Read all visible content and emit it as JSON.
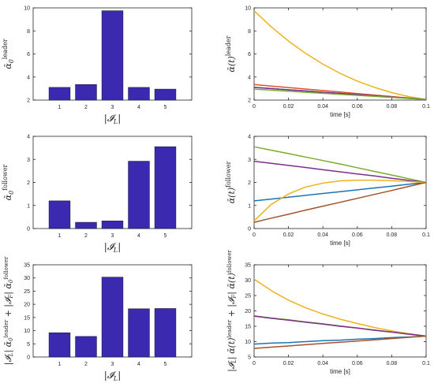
{
  "colors": {
    "bar": "#3b2ab0",
    "axis": "#262626",
    "yellow": "#eeb21f",
    "red": "#d9532a",
    "blue": "#1c73b5",
    "purple": "#7d2e8e",
    "green": "#79ac2f",
    "brown": "#a4522a"
  },
  "chart_data": [
    {
      "type": "bar",
      "categories": [
        "1",
        "2",
        "3",
        "4",
        "5"
      ],
      "values": [
        3.1,
        3.35,
        9.75,
        3.1,
        2.95
      ],
      "xlabel": "|𝓘_L|",
      "ylabel": "ᾱ₀^leader",
      "ylim": [
        2,
        10
      ],
      "yticks": [
        "2",
        "4",
        "6",
        "8",
        "10"
      ],
      "grid": false
    },
    {
      "type": "line",
      "xlabel": "time [s]",
      "ylabel": "ᾱ(t)^leader",
      "xlim": [
        0,
        0.1
      ],
      "ylim": [
        2,
        10
      ],
      "xticks": [
        "0",
        "0.02",
        "0.04",
        "0.06",
        "0.08",
        "0.1"
      ],
      "yticks": [
        "2",
        "4",
        "6",
        "8",
        "10"
      ],
      "x": [
        0,
        0.01,
        0.02,
        0.03,
        0.04,
        0.05,
        0.06,
        0.07,
        0.08,
        0.09,
        0.1
      ],
      "series": [
        {
          "color": "yellow",
          "values": [
            9.75,
            8.35,
            7.12,
            6.05,
            5.12,
            4.32,
            3.65,
            3.1,
            2.65,
            2.3,
            2.05
          ]
        },
        {
          "color": "red",
          "values": [
            3.35,
            3.22,
            3.09,
            2.96,
            2.83,
            2.7,
            2.57,
            2.44,
            2.31,
            2.18,
            2.05
          ]
        },
        {
          "color": "blue",
          "values": [
            3.1,
            3.0,
            2.89,
            2.79,
            2.68,
            2.58,
            2.47,
            2.37,
            2.26,
            2.16,
            2.05
          ]
        },
        {
          "color": "purple",
          "values": [
            3.1,
            3.0,
            2.89,
            2.79,
            2.68,
            2.58,
            2.47,
            2.37,
            2.26,
            2.16,
            2.05
          ]
        },
        {
          "color": "green",
          "values": [
            2.95,
            2.86,
            2.77,
            2.68,
            2.59,
            2.5,
            2.41,
            2.32,
            2.23,
            2.14,
            2.05
          ]
        }
      ],
      "grid": false
    },
    {
      "type": "bar",
      "categories": [
        "1",
        "2",
        "3",
        "4",
        "5"
      ],
      "values": [
        1.2,
        0.27,
        0.33,
        2.92,
        3.55
      ],
      "xlabel": "|𝓘_L|",
      "ylabel": "ᾱ₀^follower",
      "ylim": [
        0,
        4
      ],
      "yticks": [
        "0",
        "1",
        "2",
        "3",
        "4"
      ],
      "grid": false
    },
    {
      "type": "line",
      "xlabel": "time [s]",
      "ylabel": "ᾱ(t)^follower",
      "xlim": [
        0,
        0.1
      ],
      "ylim": [
        0,
        4
      ],
      "xticks": [
        "0",
        "0.02",
        "0.04",
        "0.06",
        "0.08",
        "0.1"
      ],
      "yticks": [
        "0",
        "1",
        "2",
        "3",
        "4"
      ],
      "x": [
        0,
        0.01,
        0.02,
        0.03,
        0.04,
        0.05,
        0.06,
        0.07,
        0.08,
        0.09,
        0.1
      ],
      "series": [
        {
          "color": "green",
          "values": [
            3.55,
            3.4,
            3.25,
            3.1,
            2.95,
            2.8,
            2.64,
            2.48,
            2.32,
            2.16,
            2.0
          ]
        },
        {
          "color": "purple",
          "values": [
            2.92,
            2.83,
            2.74,
            2.65,
            2.55,
            2.46,
            2.37,
            2.28,
            2.18,
            2.09,
            2.0
          ]
        },
        {
          "color": "blue",
          "values": [
            1.2,
            1.28,
            1.36,
            1.44,
            1.52,
            1.6,
            1.68,
            1.76,
            1.84,
            1.92,
            2.0
          ]
        },
        {
          "color": "yellow",
          "values": [
            0.33,
            1.05,
            1.5,
            1.8,
            1.97,
            2.07,
            2.1,
            2.1,
            2.08,
            2.04,
            2.0
          ]
        },
        {
          "color": "brown",
          "values": [
            0.27,
            0.45,
            0.62,
            0.8,
            0.97,
            1.14,
            1.31,
            1.48,
            1.65,
            1.83,
            2.0
          ]
        }
      ],
      "grid": false
    },
    {
      "type": "bar",
      "categories": [
        "1",
        "2",
        "3",
        "4",
        "5"
      ],
      "values": [
        9.2,
        7.8,
        30.3,
        18.3,
        18.4
      ],
      "xlabel": "|𝓘_L|",
      "ylabel": "|𝓘_L| ᾱ₀^leader + |𝓘_F| ᾱ₀^follower",
      "ylim": [
        0,
        35
      ],
      "yticks": [
        "0",
        "5",
        "10",
        "15",
        "20",
        "25",
        "30",
        "35"
      ],
      "grid": false
    },
    {
      "type": "line",
      "xlabel": "time [s]",
      "ylabel": "|𝓘_L| ᾱ(t)^leader + |𝓘_F| ᾱ(t)^follower",
      "xlim": [
        0,
        0.1
      ],
      "ylim": [
        5,
        35
      ],
      "xticks": [
        "0",
        "0.02",
        "0.04",
        "0.06",
        "0.08",
        "0.1"
      ],
      "yticks": [
        "5",
        "10",
        "15",
        "20",
        "25",
        "30",
        "35"
      ],
      "x": [
        0,
        0.01,
        0.02,
        0.03,
        0.04,
        0.05,
        0.06,
        0.07,
        0.08,
        0.09,
        0.1
      ],
      "series": [
        {
          "color": "yellow",
          "values": [
            30.3,
            26.6,
            23.5,
            21.0,
            19.0,
            17.3,
            15.9,
            14.6,
            13.5,
            12.6,
            11.8
          ]
        },
        {
          "color": "green",
          "values": [
            18.4,
            17.7,
            17.1,
            16.4,
            15.8,
            15.1,
            14.4,
            13.8,
            13.1,
            12.5,
            11.8
          ]
        },
        {
          "color": "purple",
          "values": [
            18.3,
            17.6,
            17.0,
            16.3,
            15.7,
            15.0,
            14.4,
            13.7,
            13.1,
            12.4,
            11.8
          ]
        },
        {
          "color": "blue",
          "values": [
            9.2,
            9.5,
            9.7,
            10.0,
            10.3,
            10.5,
            10.8,
            11.0,
            11.3,
            11.5,
            11.8
          ]
        },
        {
          "color": "brown",
          "values": [
            7.8,
            8.2,
            8.6,
            9.0,
            9.4,
            9.8,
            10.2,
            10.6,
            11.0,
            11.4,
            11.8
          ]
        }
      ],
      "grid": false
    }
  ]
}
